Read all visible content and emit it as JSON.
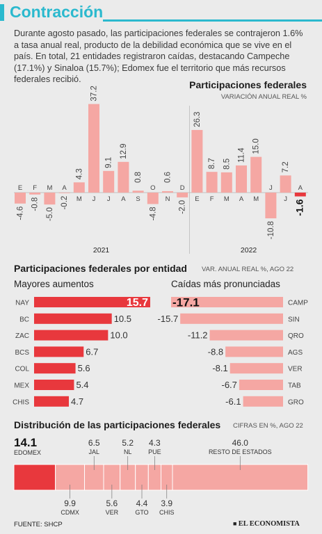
{
  "header": {
    "title": "Contracción",
    "intro": "Durante agosto pasado, las participaciones federales se contrajeron 1.6% a tasa anual real, producto de la debilidad económica que se vive en el país. En total, 21 entidades registraron caídas, destacando Campeche (17.1%) y Sinaloa (15.7%); Edomex fue el territorio que más recursos federales recibió."
  },
  "sections": {
    "monthly_title": "Participaciones federales",
    "monthly_sub": "VARIACIÓN ANUAL REAL %",
    "entity_title": "Participaciones federales por entidad",
    "entity_sub": "VAR. ANUAL REAL %, AGO 22",
    "increases_head": "Mayores aumentos",
    "decreases_head": "Caídas más pronunciadas",
    "dist_title": "Distribución de las participaciones federales",
    "dist_sub": "CIFRAS EN %, AGO 22"
  },
  "footer": {
    "source": "FUENTE: SHCP",
    "brand": "EL ECONOMISTA"
  },
  "colors": {
    "accent": "#2bb9ce",
    "bar_light": "#f5a7a3",
    "bar_dark": "#e8383d",
    "background": "#ebebeb"
  },
  "chart_data": [
    {
      "type": "bar",
      "title": "Participaciones federales",
      "subtitle": "VARIACIÓN ANUAL REAL %",
      "categories": [
        "E",
        "F",
        "M",
        "A",
        "M",
        "J",
        "J",
        "A",
        "S",
        "O",
        "N",
        "D",
        "E",
        "F",
        "M",
        "A",
        "M",
        "J",
        "J",
        "A"
      ],
      "year_labels": [
        {
          "label": "2021",
          "from": 0,
          "to": 11
        },
        {
          "label": "2022",
          "from": 12,
          "to": 19
        }
      ],
      "values": [
        -4.6,
        -0.8,
        -5.0,
        -0.2,
        4.3,
        37.2,
        9.1,
        12.9,
        0.8,
        -4.8,
        0.6,
        -2.0,
        26.3,
        8.7,
        8.5,
        11.4,
        15.0,
        -10.8,
        7.2,
        -1.6
      ],
      "value_labels": [
        "-4.6",
        "-0.8",
        "-5.0",
        "-0.2",
        "4.3",
        "37.2",
        "9.1",
        "12.9",
        "0.8",
        "-4.8",
        "0.6",
        "-2.0",
        "26.3",
        "8.7",
        "8.5",
        "11.4",
        "15.0",
        "-10.8",
        "7.2",
        "-1.6"
      ],
      "highlight_index": 19
    },
    {
      "type": "bar",
      "title": "Mayores aumentos",
      "orientation": "horizontal",
      "categories": [
        "NAY",
        "BC",
        "ZAC",
        "BCS",
        "COL",
        "MEX",
        "CHIS"
      ],
      "values": [
        15.7,
        10.5,
        10.0,
        6.7,
        5.6,
        5.4,
        4.7
      ],
      "value_labels": [
        "15.7",
        "10.5",
        "10.0",
        "6.7",
        "5.6",
        "5.4",
        "4.7"
      ],
      "highlight_index": 0
    },
    {
      "type": "bar",
      "title": "Caídas más pronunciadas",
      "orientation": "horizontal",
      "categories": [
        "CAMP",
        "SIN",
        "QRO",
        "AGS",
        "VER",
        "TAB",
        "GRO"
      ],
      "values": [
        -17.1,
        -15.7,
        -11.2,
        -8.8,
        -8.1,
        -6.7,
        -6.1
      ],
      "value_labels": [
        "-17.1",
        "-15.7",
        "-11.2",
        "-8.8",
        "-8.1",
        "-6.7",
        "-6.1"
      ],
      "highlight_index": 0
    },
    {
      "type": "bar",
      "title": "Distribución de las participaciones federales",
      "orientation": "stacked",
      "categories": [
        "EDOMEX",
        "CDMX",
        "JAL",
        "VER",
        "NL",
        "GTO",
        "PUE",
        "CHIS",
        "RESTO DE ESTADOS"
      ],
      "values": [
        14.1,
        9.9,
        6.5,
        5.6,
        5.2,
        4.4,
        4.3,
        3.9,
        46.0
      ],
      "value_labels": [
        "14.1",
        "9.9",
        "6.5",
        "5.6",
        "5.2",
        "4.4",
        "4.3",
        "3.9",
        "46.0"
      ],
      "label_side": [
        "top",
        "bottom",
        "top",
        "bottom",
        "top",
        "bottom",
        "top",
        "bottom",
        "top"
      ],
      "highlight_index": 0
    }
  ]
}
